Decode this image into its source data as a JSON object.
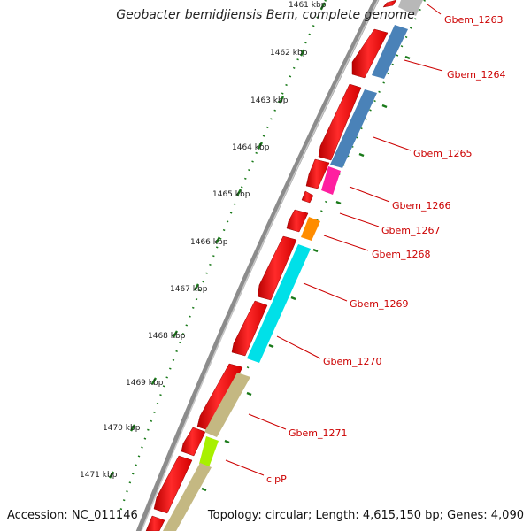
{
  "header": {
    "title": "Geobacter bemidjiensis Bem, complete genome"
  },
  "footer": {
    "accession": "Accession: NC_011146",
    "summary": "Topology: circular; Length: 4,615,150 bp; Genes: 4,090"
  },
  "scale": {
    "labels": [
      "1461 kbp",
      "1462 kbp",
      "1463 kbp",
      "1464 kbp",
      "1465 kbp",
      "1466 kbp",
      "1467 kbp",
      "1468 kbp",
      "1469 kbp",
      "1470 kbp",
      "1471 kbp"
    ]
  },
  "genes": {
    "labels": [
      "Gbem_1263",
      "Gbem_1264",
      "Gbem_1265",
      "Gbem_1266",
      "Gbem_1267",
      "Gbem_1268",
      "Gbem_1269",
      "Gbem_1270",
      "Gbem_1271",
      "clpP"
    ]
  },
  "colors": {
    "cds": "#ff0000",
    "backbone": "#888888",
    "tick": "#1a7a1a",
    "label": "#cc0000"
  }
}
